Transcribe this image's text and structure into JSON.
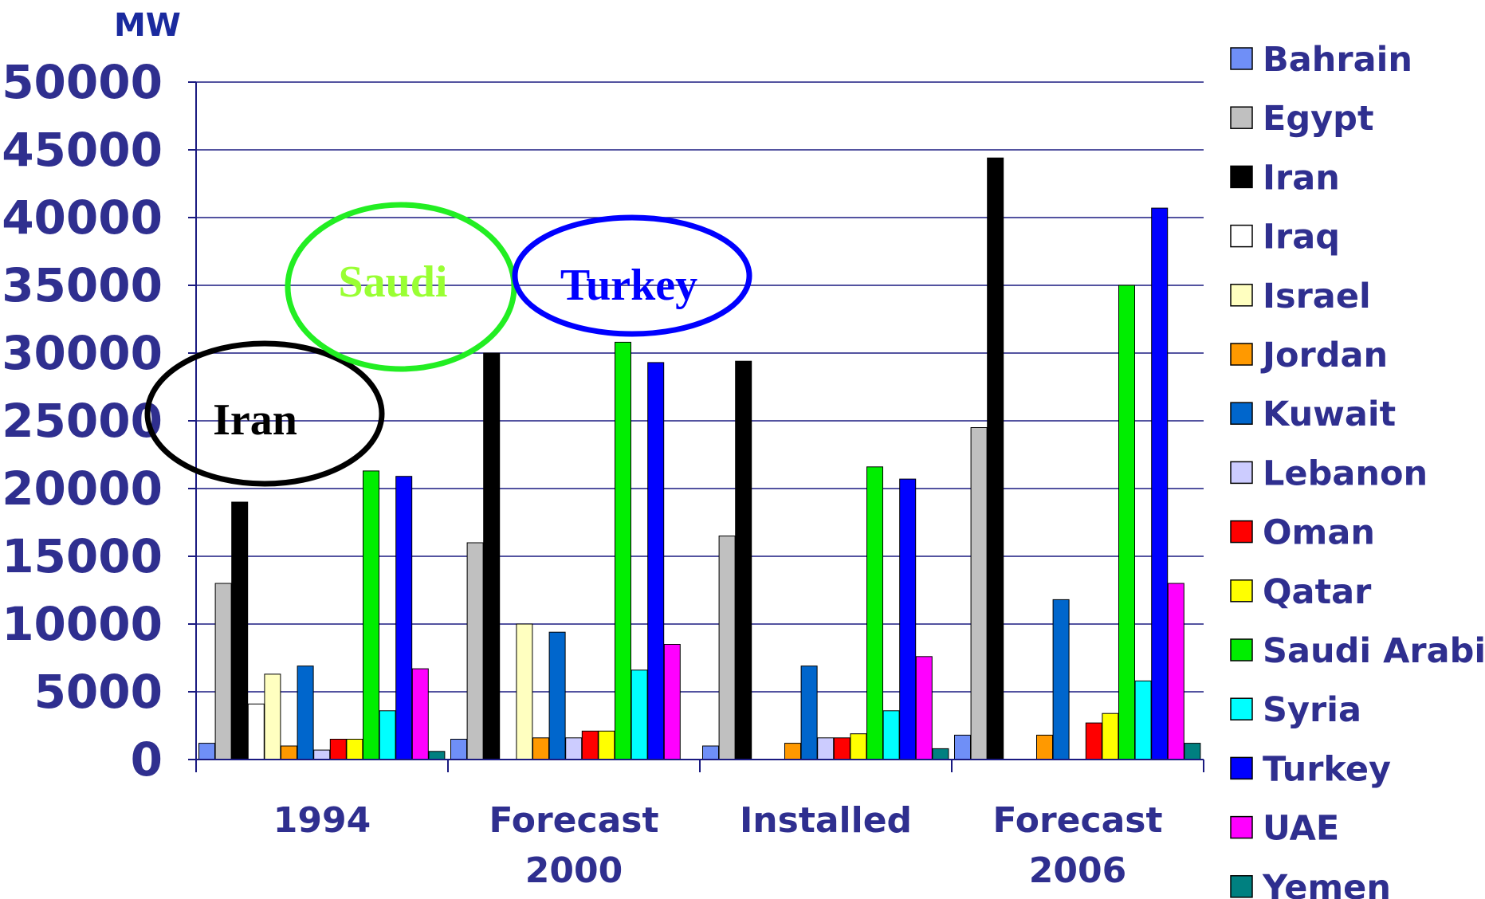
{
  "chart_data": {
    "type": "bar",
    "unit_label": "MW",
    "categories": [
      [
        "1994"
      ],
      [
        "Forecast",
        "2000"
      ],
      [
        "Installed"
      ],
      [
        "Forecast",
        "2006"
      ]
    ],
    "ylim": [
      0,
      50000
    ],
    "yticks": [
      0,
      5000,
      10000,
      15000,
      20000,
      25000,
      30000,
      35000,
      40000,
      45000,
      50000
    ],
    "grid": true,
    "legend_position": "right",
    "series": [
      {
        "name": "Bahrain",
        "color": "#6f8ff7",
        "values": [
          1200,
          1500,
          1000,
          1800
        ]
      },
      {
        "name": "Egypt",
        "color": "#c0c0c0",
        "values": [
          13000,
          16000,
          16500,
          24500
        ]
      },
      {
        "name": "Iran",
        "color": "#000000",
        "values": [
          19000,
          30000,
          29400,
          44400
        ]
      },
      {
        "name": "Iraq",
        "color": "#ffffff",
        "values": [
          4100,
          0,
          0,
          0
        ]
      },
      {
        "name": "Israel",
        "color": "#ffffc0",
        "values": [
          6300,
          10000,
          0,
          0
        ]
      },
      {
        "name": "Jordan",
        "color": "#ff9900",
        "values": [
          1000,
          1600,
          1200,
          1800
        ]
      },
      {
        "name": "Kuwait",
        "color": "#0066cc",
        "values": [
          6900,
          9400,
          6900,
          11800
        ]
      },
      {
        "name": "Lebanon",
        "color": "#ccccff",
        "values": [
          700,
          1600,
          1600,
          0
        ]
      },
      {
        "name": "Oman",
        "color": "#ff0000",
        "values": [
          1500,
          2100,
          1600,
          2700
        ]
      },
      {
        "name": "Qatar",
        "color": "#ffff00",
        "values": [
          1500,
          2100,
          1900,
          3400
        ]
      },
      {
        "name": "Saudi Arabia",
        "color": "#00ee00",
        "values": [
          21300,
          30800,
          21600,
          35000
        ]
      },
      {
        "name": "Syria",
        "color": "#00ffff",
        "values": [
          3600,
          6600,
          3600,
          5800
        ]
      },
      {
        "name": "Turkey",
        "color": "#0000ff",
        "values": [
          20900,
          29300,
          20700,
          40700
        ]
      },
      {
        "name": "UAE",
        "color": "#ff00ff",
        "values": [
          6700,
          8500,
          7600,
          13000
        ]
      },
      {
        "name": "Yemen",
        "color": "#008080",
        "values": [
          600,
          0,
          800,
          1200
        ]
      }
    ],
    "annotations": [
      {
        "text": "Iran",
        "color": "#000000"
      },
      {
        "text": "Saudi",
        "color": "#99ff33",
        "ring_color": "#22ee22"
      },
      {
        "text": "Turkey",
        "color": "#0000ff",
        "ring_color": "#0000ff"
      }
    ]
  }
}
